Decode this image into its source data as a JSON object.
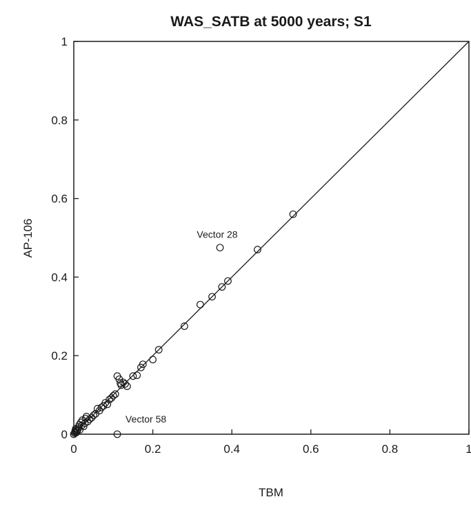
{
  "chart_data": {
    "type": "scatter",
    "title": "WAS_SATB at 5000 years; S1",
    "xlabel": "TBM",
    "ylabel": "AP-106",
    "xlim": [
      0,
      1
    ],
    "ylim": [
      0,
      1
    ],
    "xticks": [
      "0",
      "0.2",
      "0.4",
      "0.6",
      "0.8",
      "1"
    ],
    "yticks": [
      "0",
      "0.2",
      "0.4",
      "0.6",
      "0.8",
      "1"
    ],
    "tick_values": [
      0,
      0.2,
      0.4,
      0.6,
      0.8,
      1
    ],
    "grid": false,
    "reference_line": {
      "from": [
        0,
        0
      ],
      "to": [
        1,
        1
      ]
    },
    "marker": "open-circle",
    "series": [
      {
        "points": [
          [
            0.0,
            0.0
          ],
          [
            0.002,
            0.003
          ],
          [
            0.003,
            0.006
          ],
          [
            0.004,
            0.01
          ],
          [
            0.005,
            0.014
          ],
          [
            0.006,
            0.004
          ],
          [
            0.008,
            0.008
          ],
          [
            0.01,
            0.012
          ],
          [
            0.012,
            0.018
          ],
          [
            0.014,
            0.024
          ],
          [
            0.015,
            0.011
          ],
          [
            0.018,
            0.03
          ],
          [
            0.02,
            0.022
          ],
          [
            0.022,
            0.036
          ],
          [
            0.025,
            0.02
          ],
          [
            0.028,
            0.028
          ],
          [
            0.03,
            0.04
          ],
          [
            0.032,
            0.045
          ],
          [
            0.035,
            0.032
          ],
          [
            0.04,
            0.038
          ],
          [
            0.045,
            0.042
          ],
          [
            0.05,
            0.048
          ],
          [
            0.055,
            0.052
          ],
          [
            0.06,
            0.065
          ],
          [
            0.065,
            0.06
          ],
          [
            0.07,
            0.068
          ],
          [
            0.075,
            0.072
          ],
          [
            0.08,
            0.08
          ],
          [
            0.085,
            0.076
          ],
          [
            0.09,
            0.088
          ],
          [
            0.095,
            0.092
          ],
          [
            0.1,
            0.098
          ],
          [
            0.105,
            0.102
          ],
          [
            0.11,
            0.148
          ],
          [
            0.115,
            0.14
          ],
          [
            0.118,
            0.13
          ],
          [
            0.12,
            0.125
          ],
          [
            0.125,
            0.132
          ],
          [
            0.13,
            0.128
          ],
          [
            0.135,
            0.122
          ],
          [
            0.15,
            0.148
          ],
          [
            0.16,
            0.15
          ],
          [
            0.17,
            0.17
          ],
          [
            0.175,
            0.178
          ],
          [
            0.2,
            0.19
          ],
          [
            0.215,
            0.215
          ],
          [
            0.28,
            0.275
          ],
          [
            0.32,
            0.33
          ],
          [
            0.35,
            0.35
          ],
          [
            0.375,
            0.375
          ],
          [
            0.39,
            0.39
          ],
          [
            0.465,
            0.47
          ],
          [
            0.555,
            0.56
          ],
          [
            0.37,
            0.475
          ],
          [
            0.11,
            0.0
          ]
        ]
      }
    ],
    "annotations": [
      {
        "text": "Vector 28",
        "x": 0.37,
        "y": 0.475
      },
      {
        "text": "Vector 58",
        "x": 0.11,
        "y": 0.0
      }
    ]
  }
}
